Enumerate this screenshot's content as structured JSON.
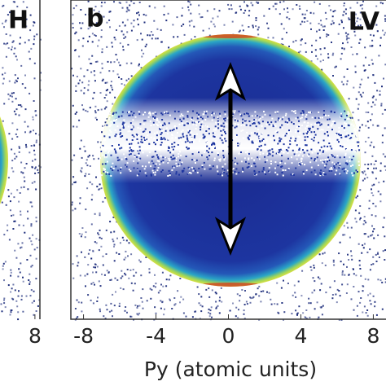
{
  "chart_data": [
    {
      "type": "heatmap",
      "panel_label": "H",
      "xlim": [
        -8.7,
        9.2
      ],
      "xticks": [
        8
      ]
    },
    {
      "type": "heatmap",
      "panel_label": "b",
      "annotation": "LV",
      "x_label": "Py (atomic units)",
      "xlim": [
        -8.7,
        8.7
      ],
      "xticks": [
        -8,
        -4,
        0,
        4,
        8
      ]
    }
  ]
}
